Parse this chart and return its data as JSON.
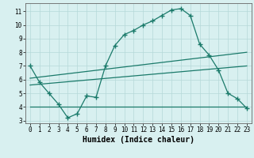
{
  "main_x": [
    0,
    1,
    2,
    3,
    4,
    5,
    6,
    7,
    8,
    9,
    10,
    11,
    12,
    13,
    14,
    15,
    16,
    17,
    18,
    19,
    20,
    21,
    22,
    23
  ],
  "main_y": [
    7.0,
    5.8,
    5.0,
    4.2,
    3.2,
    3.5,
    4.8,
    4.7,
    7.0,
    8.5,
    9.3,
    9.6,
    10.0,
    10.3,
    10.7,
    11.1,
    11.2,
    10.7,
    8.6,
    7.8,
    6.7,
    5.0,
    4.6,
    3.9
  ],
  "line1_x": [
    0,
    23
  ],
  "line1_y": [
    6.1,
    8.0
  ],
  "line2_x": [
    0,
    23
  ],
  "line2_y": [
    5.6,
    7.0
  ],
  "line3_x": [
    0,
    23
  ],
  "line3_y": [
    4.0,
    4.0
  ],
  "color": "#1a7a6a",
  "bg_color": "#d8f0f0",
  "grid_color": "#b5d8d8",
  "xlabel": "Humidex (Indice chaleur)",
  "xlabel_fontsize": 7,
  "ylim": [
    2.8,
    11.6
  ],
  "xlim": [
    -0.5,
    23.5
  ],
  "yticks": [
    3,
    4,
    5,
    6,
    7,
    8,
    9,
    10,
    11
  ],
  "xticks": [
    0,
    1,
    2,
    3,
    4,
    5,
    6,
    7,
    8,
    9,
    10,
    11,
    12,
    13,
    14,
    15,
    16,
    17,
    18,
    19,
    20,
    21,
    22,
    23
  ]
}
